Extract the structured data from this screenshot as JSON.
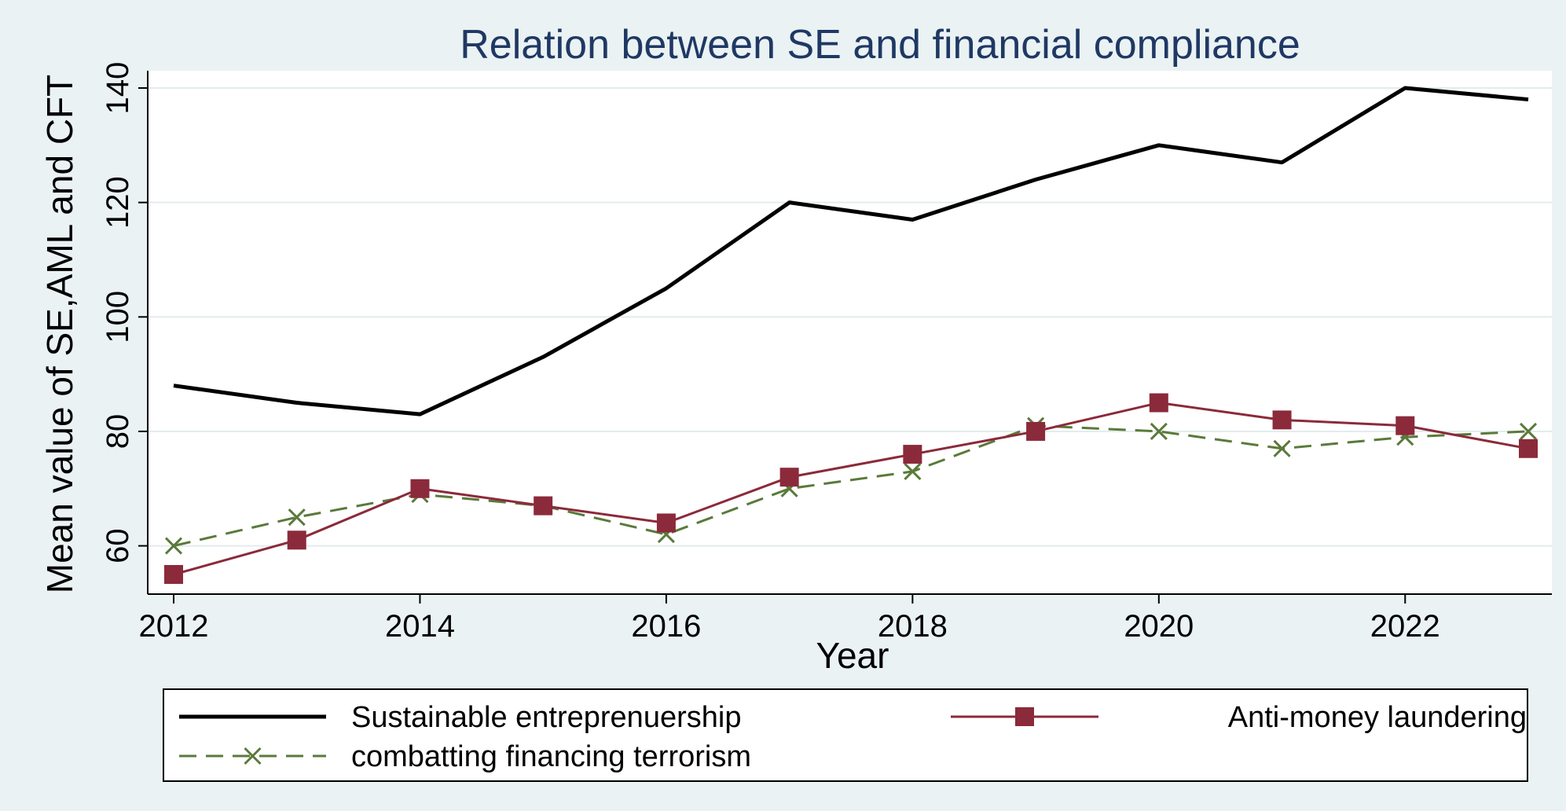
{
  "chart_data": {
    "type": "line",
    "title": "Relation between SE and financial compliance",
    "xlabel": "Year",
    "ylabel": "Mean value of SE,AML and CFT",
    "x": [
      2012,
      2013,
      2014,
      2015,
      2016,
      2017,
      2018,
      2019,
      2020,
      2021,
      2022,
      2023
    ],
    "x_ticks": [
      2012,
      2014,
      2016,
      2018,
      2020,
      2022
    ],
    "y_ticks": [
      60,
      80,
      100,
      120,
      140
    ],
    "xlim": [
      2012,
      2023
    ],
    "ylim": [
      55,
      140
    ],
    "grid": "horizontal",
    "legend_position": "bottom",
    "series": [
      {
        "name": "Sustainable entreprenuership",
        "values": [
          88,
          85,
          83,
          93,
          105,
          120,
          117,
          124,
          130,
          127,
          140,
          138
        ],
        "color": "#000000",
        "style": "solid",
        "marker": "none"
      },
      {
        "name": "Anti-money laundering",
        "values": [
          55,
          61,
          70,
          67,
          64,
          72,
          76,
          80,
          85,
          82,
          81,
          77
        ],
        "color": "#8b2a3a",
        "style": "solid",
        "marker": "square"
      },
      {
        "name": "combatting financing terrorism",
        "values": [
          60,
          65,
          69,
          67,
          62,
          70,
          73,
          81,
          80,
          77,
          79,
          80
        ],
        "color": "#5a7a3a",
        "style": "dashed",
        "marker": "x"
      }
    ]
  },
  "colors": {
    "background": "#eaf2f3",
    "plot_background": "#ffffff",
    "grid": "#e3ecee",
    "title": "#1f3864"
  }
}
